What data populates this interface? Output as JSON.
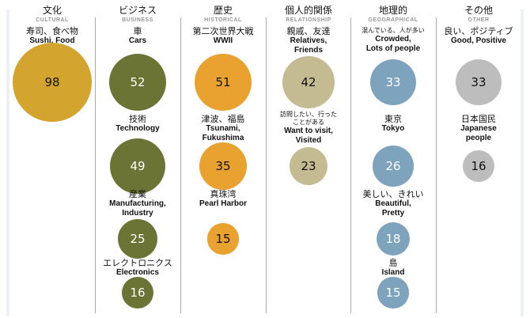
{
  "chart_data": {
    "type": "bubble",
    "title": "",
    "columns": [
      {
        "jp": "文化",
        "en": "CULTURAL",
        "color": "#d4a52e",
        "text_color": "#111111",
        "items": [
          {
            "jp": "寿司、食べ物",
            "en": "Sushi, Food",
            "value": 98
          }
        ]
      },
      {
        "jp": "ビジネス",
        "en": "BUSINESS",
        "color": "#6b7434",
        "text_color": "#ffffff",
        "items": [
          {
            "jp": "車",
            "en": "Cars",
            "value": 52
          },
          {
            "jp": "技術",
            "en": "Technology",
            "value": 49
          },
          {
            "jp": "産業",
            "en": "Manufacturing,\nIndustry",
            "value": 25
          },
          {
            "jp": "エレクトロニクス",
            "en": "Electronics",
            "value": 16
          }
        ]
      },
      {
        "jp": "歴史",
        "en": "HISTORICAL",
        "color": "#e9a12f",
        "text_color": "#111111",
        "items": [
          {
            "jp": "第二次世界大戦",
            "en": "WWII",
            "value": 51
          },
          {
            "jp": "津波、福島",
            "en": "Tsunami,\nFukushima",
            "value": 35
          },
          {
            "jp": "真珠湾",
            "en": "Pearl Harbor",
            "value": 15
          }
        ]
      },
      {
        "jp": "個人的関係",
        "en": "RELATIONSHIP",
        "color": "#c5bb93",
        "text_color": "#111111",
        "items": [
          {
            "jp": "親戚、友達",
            "en": "Relatives,\nFriends",
            "value": 42
          },
          {
            "jp": "訪問したい、行った\nことがある",
            "en": "Want to visit,\nVisited",
            "value": 23
          }
        ]
      },
      {
        "jp": "地理的",
        "en": "GEOGRAPHICAL",
        "color": "#7ea3bd",
        "text_color": "#ffffff",
        "items": [
          {
            "jp": "混んでいる、人が多い",
            "en": "Crowded,\nLots of people",
            "value": 33
          },
          {
            "jp": "東京",
            "en": "Tokyo",
            "value": 26
          },
          {
            "jp": "美しい、きれい",
            "en": "Beautiful,\nPretty",
            "value": 18
          },
          {
            "jp": "島",
            "en": "Island",
            "value": 15
          }
        ]
      },
      {
        "jp": "その他",
        "en": "OTHER",
        "color": "#bdbdbd",
        "text_color": "#111111",
        "items": [
          {
            "jp": "良い、ポジティブ",
            "en": "Good, Positive",
            "value": 33
          },
          {
            "jp": "日本国民",
            "en": "Japanese\npeople",
            "value": 16
          }
        ]
      }
    ]
  }
}
